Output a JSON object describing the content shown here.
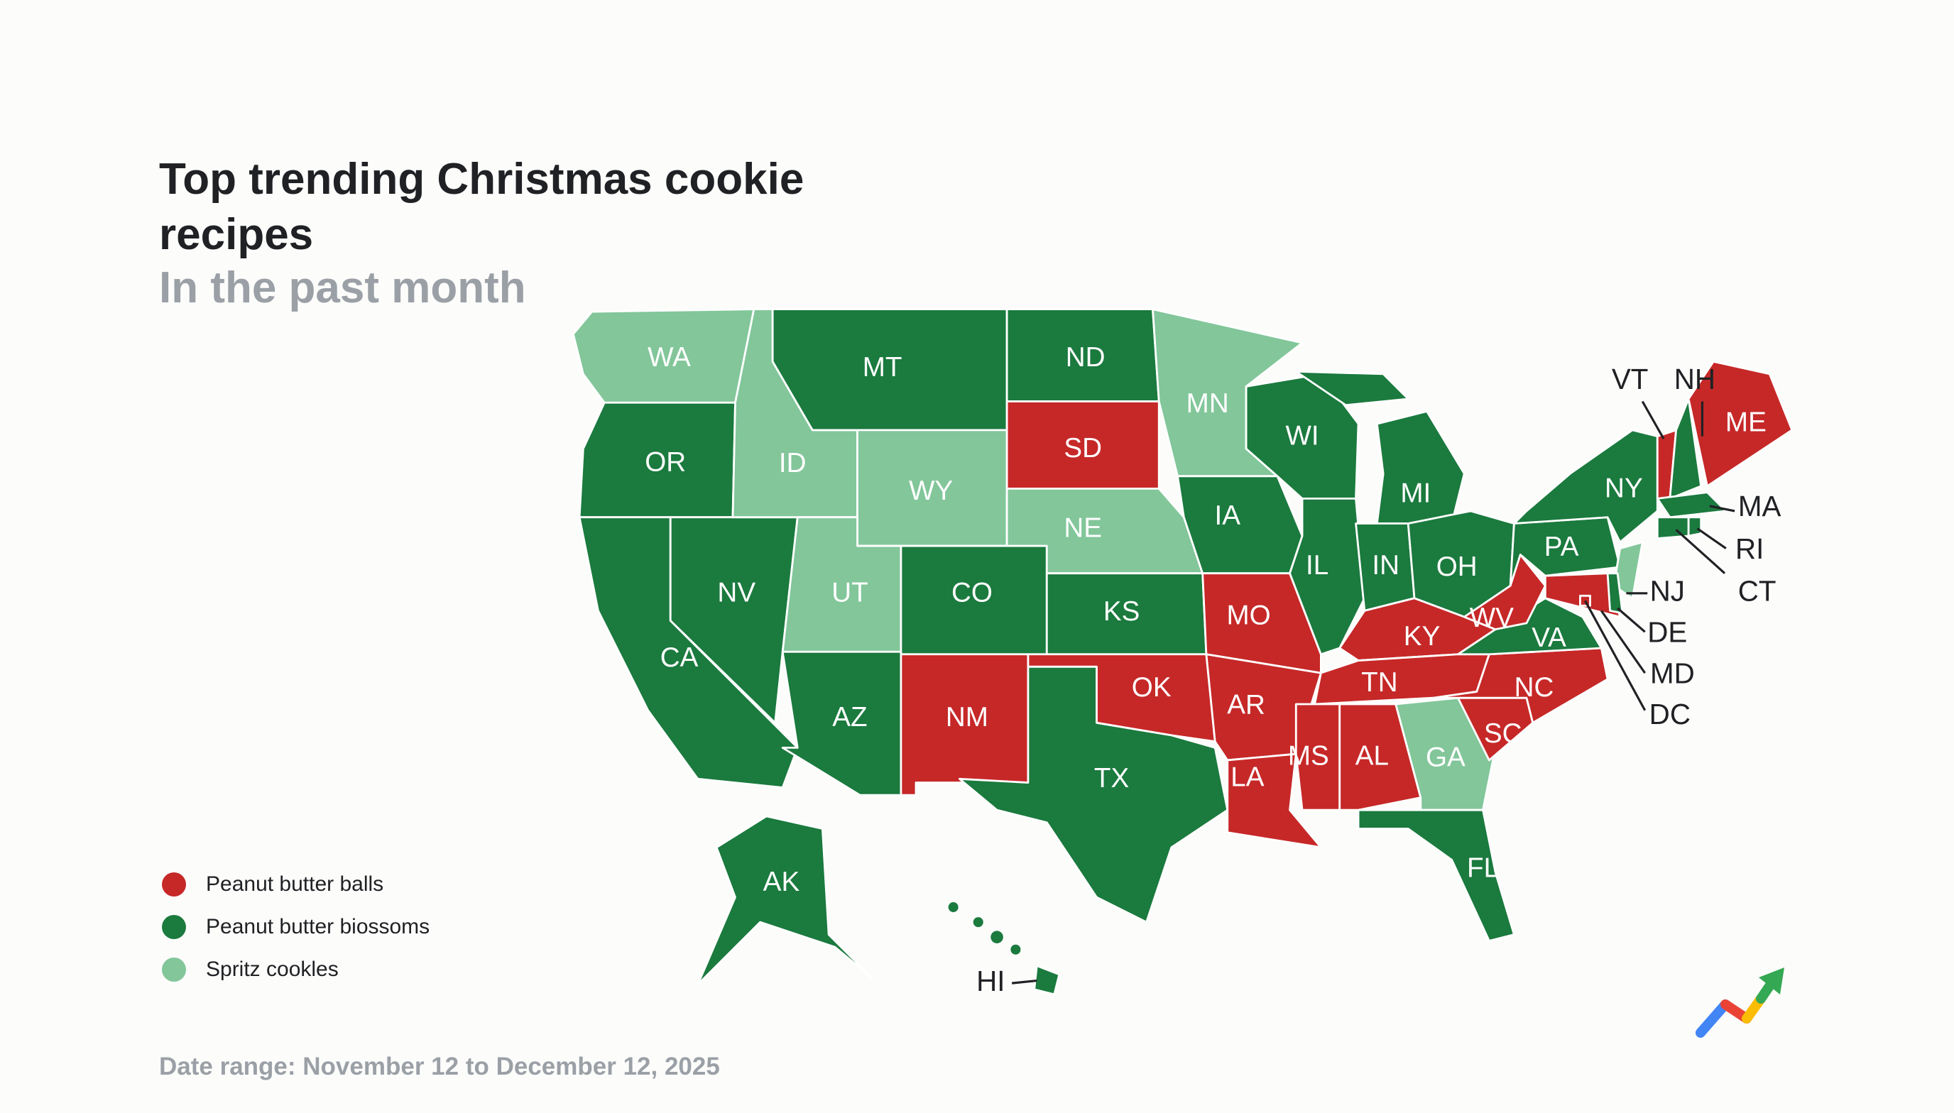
{
  "title": "Top trending Christmas cookie recipes",
  "subtitle": "In the past month",
  "footer": "Date range: November 12 to December 12, 2025",
  "logo_icon": "google-trends-arrow-icon",
  "chart_data": {
    "type": "choropleth",
    "title": "Top trending Christmas cookie recipes",
    "subtitle": "In the past month",
    "legend_placement": "bottom-left",
    "categories": [
      {
        "key": "pbb",
        "label": "Peanut butter balls",
        "color": "#c62828"
      },
      {
        "key": "blossoms",
        "label": "Peanut butter biossoms",
        "color": "#1b7a3e"
      },
      {
        "key": "spritz",
        "label": "Spritz cookles",
        "color": "#82c69a"
      }
    ],
    "states": {
      "WA": "spritz",
      "OR": "blossoms",
      "CA": "blossoms",
      "NV": "blossoms",
      "ID": "spritz",
      "MT": "blossoms",
      "WY": "spritz",
      "UT": "spritz",
      "CO": "blossoms",
      "AZ": "blossoms",
      "NM": "pbb",
      "ND": "blossoms",
      "SD": "pbb",
      "NE": "spritz",
      "KS": "blossoms",
      "OK": "pbb",
      "TX": "blossoms",
      "MN": "spritz",
      "IA": "blossoms",
      "MO": "pbb",
      "AR": "pbb",
      "LA": "pbb",
      "WI": "blossoms",
      "IL": "blossoms",
      "MI": "blossoms",
      "IN": "blossoms",
      "OH": "blossoms",
      "KY": "pbb",
      "TN": "pbb",
      "MS": "pbb",
      "AL": "pbb",
      "GA": "spritz",
      "FL": "blossoms",
      "SC": "pbb",
      "NC": "pbb",
      "VA": "blossoms",
      "WV": "pbb",
      "PA": "blossoms",
      "NY": "blossoms",
      "NJ": "spritz",
      "DE": "blossoms",
      "MD": "pbb",
      "DC": "pbb",
      "VT": "pbb",
      "NH": "blossoms",
      "ME": "pbb",
      "MA": "blossoms",
      "CT": "blossoms",
      "RI": "blossoms",
      "AK": "blossoms",
      "HI": "blossoms"
    }
  }
}
